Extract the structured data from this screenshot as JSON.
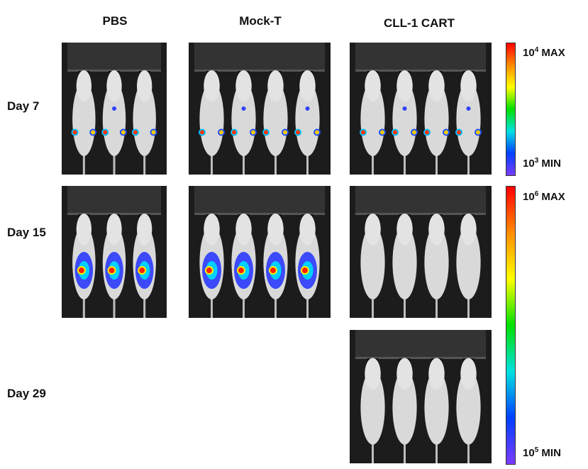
{
  "columns": [
    "PBS",
    "Mock-T",
    "CLL-1 CART"
  ],
  "rows": [
    "Day 7",
    "Day 15",
    "Day 29"
  ],
  "scales": [
    {
      "max_base": "10",
      "max_exp": "4",
      "max_word": "MAX",
      "min_base": "10",
      "min_exp": "3",
      "min_word": "MIN"
    },
    {
      "max_base": "10",
      "max_exp": "6",
      "max_word": "MAX",
      "min_base": "10",
      "min_exp": "5",
      "min_word": "MIN"
    }
  ],
  "panels": [
    {
      "group": "PBS",
      "day": "Day 7",
      "mice": 3,
      "signal": "low"
    },
    {
      "group": "Mock-T",
      "day": "Day 7",
      "mice": 4,
      "signal": "low"
    },
    {
      "group": "CLL-1 CART",
      "day": "Day 7",
      "mice": 4,
      "signal": "low"
    },
    {
      "group": "PBS",
      "day": "Day 15",
      "mice": 3,
      "signal": "high"
    },
    {
      "group": "Mock-T",
      "day": "Day 15",
      "mice": 4,
      "signal": "high"
    },
    {
      "group": "CLL-1 CART",
      "day": "Day 15",
      "mice": 4,
      "signal": "none"
    },
    {
      "group": "CLL-1 CART",
      "day": "Day 29",
      "mice": 4,
      "signal": "none"
    }
  ],
  "colors": {
    "background": "#ffffff",
    "panel_bg": "#1c1c1c",
    "mouse_fur": "#d9d9d9",
    "scale_gradient": [
      "#ff0000",
      "#ff8c00",
      "#ffff00",
      "#00e000",
      "#00e0e0",
      "#0040ff",
      "#7a3cff"
    ]
  }
}
